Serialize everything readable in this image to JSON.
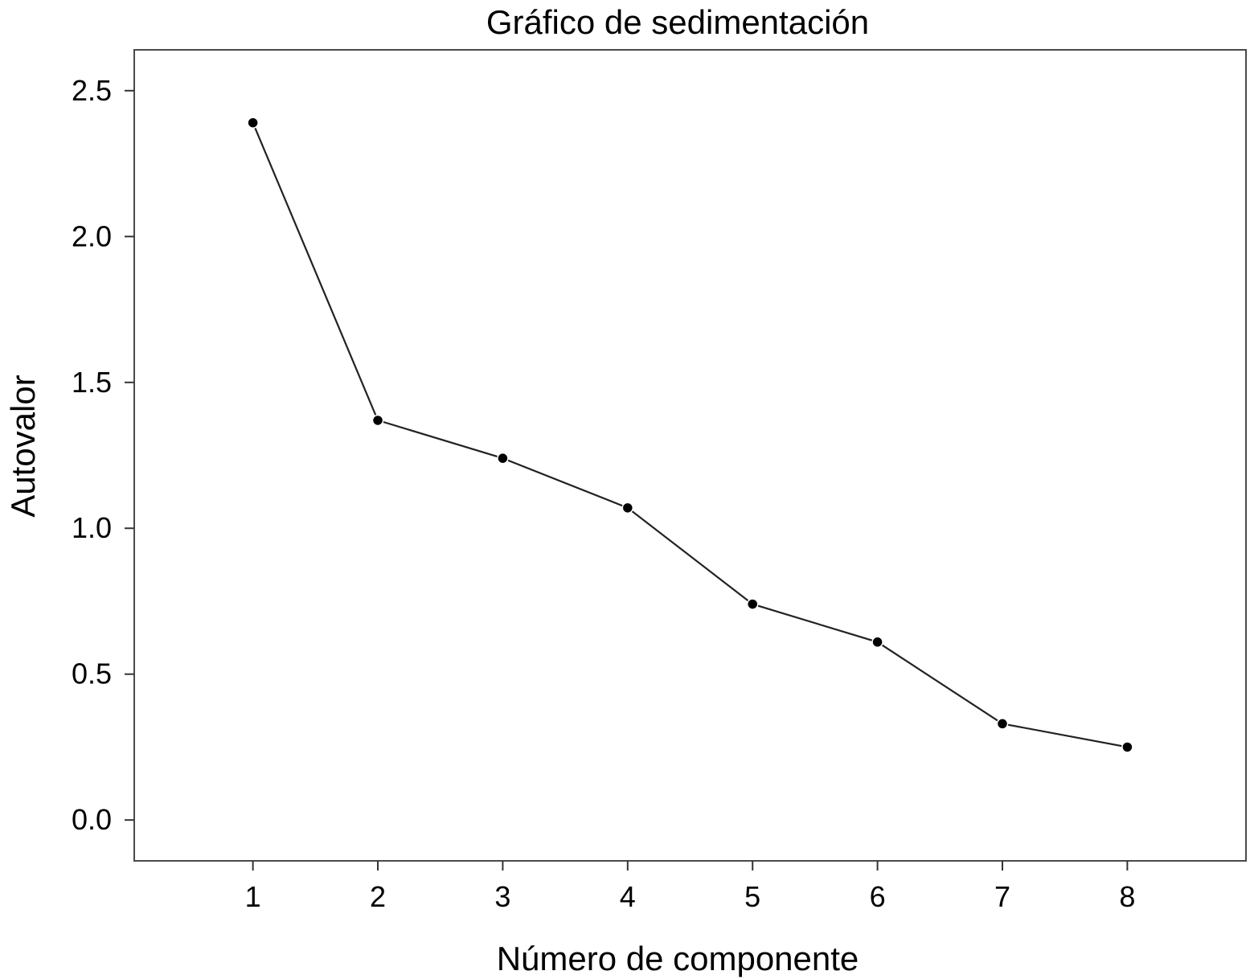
{
  "chart_data": {
    "type": "line",
    "title": "Gráfico de sedimentación",
    "xlabel": "Número de componente",
    "ylabel": "Autovalor",
    "x": [
      1,
      2,
      3,
      4,
      5,
      6,
      7,
      8
    ],
    "y": [
      2.39,
      1.37,
      1.24,
      1.07,
      0.74,
      0.61,
      0.33,
      0.25
    ],
    "xlim": [
      0.05,
      8.95
    ],
    "ylim": [
      -0.14,
      2.64
    ],
    "xticks": [
      "1",
      "2",
      "3",
      "4",
      "5",
      "6",
      "7",
      "8"
    ],
    "yticks": [
      "0.0",
      "0.5",
      "1.0",
      "1.5",
      "2.0",
      "2.5"
    ],
    "grid": false,
    "legend": "none",
    "marker": "circle",
    "colors": {
      "line": "#222222",
      "marker": "#000000",
      "frame": "#4a4a4a"
    }
  }
}
